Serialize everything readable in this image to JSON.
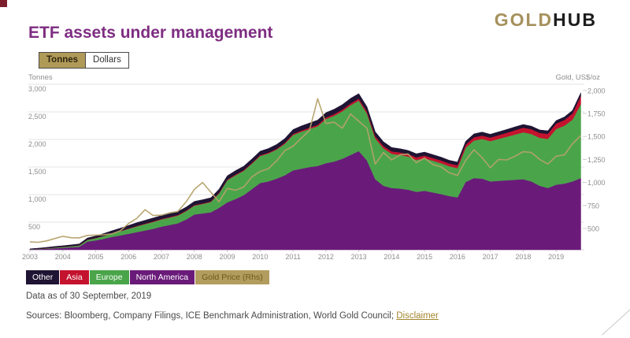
{
  "logo": {
    "gold": "GOLD",
    "hub": "HUB"
  },
  "title": "ETF assets under management",
  "toggle": {
    "options": [
      "Tonnes",
      "Dollars"
    ],
    "selected": "Tonnes"
  },
  "footer": {
    "data_as_of": "Data as of 30 September, 2019",
    "sources_prefix": "Sources: Bloomberg, Company Filings, ICE Benchmark Administration, World Gold Council; ",
    "disclaimer_label": "Disclaimer"
  },
  "chart_data": {
    "type": "area",
    "stacked": true,
    "title": "ETF assets under management",
    "left_axis": {
      "title": "Tonnes",
      "min": 0,
      "max": 3000,
      "ticks": [
        500,
        1000,
        1500,
        2000,
        2500,
        3000
      ]
    },
    "right_axis": {
      "title": "Gold, US$/oz",
      "ticks": [
        500,
        750,
        1000,
        1250,
        1500,
        1750,
        2000
      ]
    },
    "x_ticks": [
      2003,
      2004,
      2005,
      2006,
      2007,
      2008,
      2009,
      2010,
      2011,
      2012,
      2013,
      2014,
      2015,
      2016,
      2017,
      2018,
      2019
    ],
    "x_start": 2003,
    "x_step_years": 0.25,
    "grid": "horizontal",
    "legend_position": "bottom-left",
    "series": [
      {
        "name": "North America",
        "type": "area",
        "axis": "left",
        "color": "#6a1b7a",
        "values": [
          5,
          10,
          18,
          28,
          35,
          45,
          55,
          150,
          170,
          200,
          235,
          260,
          290,
          320,
          350,
          380,
          420,
          450,
          480,
          550,
          640,
          660,
          680,
          760,
          860,
          920,
          990,
          1100,
          1210,
          1240,
          1290,
          1350,
          1440,
          1470,
          1500,
          1520,
          1570,
          1600,
          1650,
          1720,
          1790,
          1620,
          1280,
          1160,
          1120,
          1110,
          1090,
          1050,
          1070,
          1040,
          1010,
          975,
          950,
          1230,
          1300,
          1290,
          1240,
          1250,
          1260,
          1270,
          1280,
          1240,
          1160,
          1120,
          1180,
          1200,
          1240,
          1300
        ]
      },
      {
        "name": "Europe",
        "type": "area",
        "axis": "left",
        "color": "#4aa54a",
        "values": [
          3,
          5,
          8,
          12,
          15,
          18,
          22,
          30,
          40,
          50,
          60,
          75,
          90,
          105,
          115,
          125,
          130,
          135,
          140,
          150,
          160,
          170,
          185,
          260,
          400,
          430,
          440,
          460,
          490,
          505,
          525,
          570,
          640,
          670,
          690,
          720,
          800,
          830,
          860,
          900,
          915,
          850,
          740,
          680,
          620,
          610,
          600,
          580,
          590,
          575,
          560,
          540,
          530,
          620,
          680,
          720,
          730,
          760,
          790,
          820,
          850,
          860,
          870,
          890,
          1010,
          1050,
          1120,
          1340
        ]
      },
      {
        "name": "Asia",
        "type": "area",
        "axis": "left",
        "color": "#c4132e",
        "values": [
          1,
          1,
          2,
          2,
          3,
          3,
          4,
          4,
          5,
          5,
          6,
          6,
          7,
          8,
          9,
          10,
          10,
          10,
          11,
          11,
          12,
          12,
          12,
          13,
          13,
          14,
          14,
          15,
          15,
          16,
          17,
          18,
          20,
          22,
          24,
          26,
          28,
          30,
          32,
          34,
          36,
          38,
          40,
          42,
          44,
          45,
          46,
          47,
          48,
          49,
          50,
          50,
          52,
          56,
          60,
          62,
          64,
          68,
          72,
          78,
          84,
          86,
          88,
          92,
          98,
          102,
          112,
          150
        ]
      },
      {
        "name": "Other",
        "type": "area",
        "axis": "left",
        "color": "#1f1433",
        "values": [
          8,
          12,
          15,
          18,
          20,
          22,
          25,
          30,
          35,
          40,
          45,
          50,
          55,
          58,
          60,
          62,
          60,
          60,
          62,
          64,
          65,
          65,
          66,
          66,
          68,
          70,
          70,
          72,
          72,
          74,
          76,
          78,
          80,
          82,
          84,
          86,
          88,
          88,
          90,
          92,
          90,
          85,
          80,
          76,
          70,
          68,
          66,
          64,
          64,
          62,
          60,
          58,
          58,
          60,
          62,
          62,
          60,
          60,
          60,
          60,
          58,
          56,
          55,
          55,
          55,
          55,
          55,
          55
        ]
      },
      {
        "name": "Gold Price (Rhs)",
        "type": "line",
        "axis": "right",
        "color": "#b5a169",
        "values": [
          355,
          350,
          365,
          390,
          415,
          400,
          398,
          425,
          428,
          432,
          442,
          475,
          555,
          610,
          705,
          640,
          645,
          670,
          685,
          790,
          925,
          1000,
          895,
          790,
          935,
          915,
          950,
          1060,
          1120,
          1150,
          1235,
          1345,
          1395,
          1480,
          1565,
          1910,
          1640,
          1655,
          1590,
          1745,
          1665,
          1590,
          1200,
          1325,
          1245,
          1300,
          1310,
          1215,
          1265,
          1195,
          1170,
          1105,
          1075,
          1240,
          1355,
          1270,
          1160,
          1250,
          1245,
          1285,
          1335,
          1325,
          1250,
          1200,
          1285,
          1300,
          1420,
          1510
        ]
      }
    ],
    "legend": [
      {
        "label": "Other",
        "bg": "#1f1433",
        "fg": "#ffffff"
      },
      {
        "label": "Asia",
        "bg": "#c4132e",
        "fg": "#ffffff"
      },
      {
        "label": "Europe",
        "bg": "#4aa54a",
        "fg": "#ffffff"
      },
      {
        "label": "North America",
        "bg": "#6a1b7a",
        "fg": "#ffffff"
      },
      {
        "label": "Gold Price (Rhs)",
        "bg": "#b29c5e",
        "fg": "#6e5a1a"
      }
    ]
  }
}
